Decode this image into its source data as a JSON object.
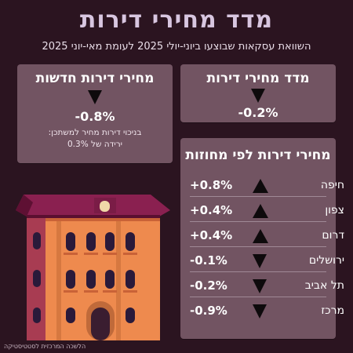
{
  "header": {
    "title": "מדד מחירי דירות",
    "subtitle": "השוואת עסקאות שבוצעו ביוני-יולי 2025 לעומת מאי-יוני 2025"
  },
  "index_card": {
    "title": "מדד מחירי דירות",
    "trend": "down",
    "value": "-0.2%"
  },
  "new_card": {
    "title": "מחירי דירות חדשות",
    "trend": "down",
    "value": "-0.8%",
    "note_line1": "בניכוי דירות מחיר למשתכן:",
    "note_line2": "ירידה של 0.3%"
  },
  "districts_card": {
    "title": "מחירי דירות לפי מחוזות",
    "rows": [
      {
        "name": "חיפה",
        "value": "+0.8%",
        "trend": "up"
      },
      {
        "name": "צפון",
        "value": "+0.4%",
        "trend": "up"
      },
      {
        "name": "דרום",
        "value": "+0.4%",
        "trend": "up"
      },
      {
        "name": "ירושלים",
        "value": "-0.1%",
        "trend": "down"
      },
      {
        "name": "תל אביב",
        "value": "-0.2%",
        "trend": "down"
      },
      {
        "name": "מרכז",
        "value": "-0.9%",
        "trend": "down"
      }
    ]
  },
  "footer": {
    "credit": "הלשכה המרכזית לסטטיסטיקה"
  },
  "colors": {
    "background": "#2b1420",
    "card": "#725462",
    "title": "#d8c6e0",
    "arrow": "#0e0a0c"
  }
}
